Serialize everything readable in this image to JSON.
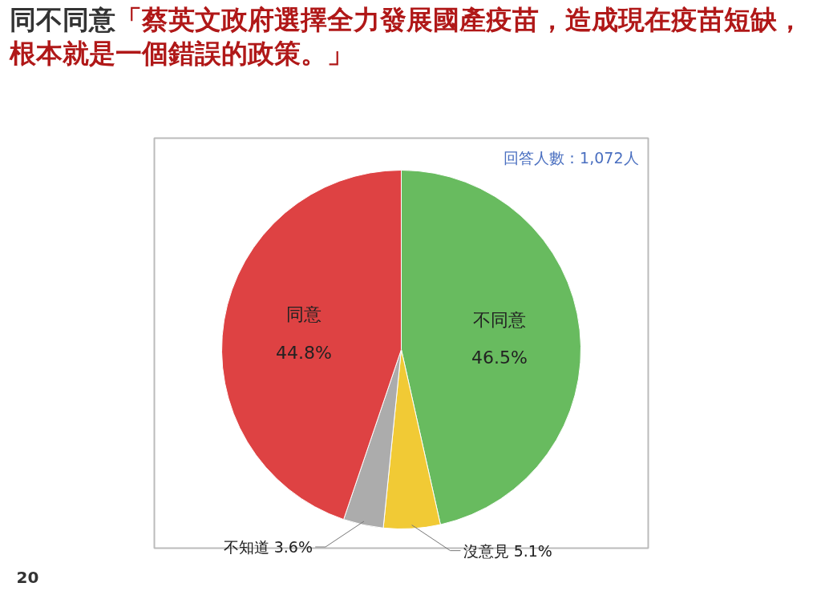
{
  "chart_data": {
    "type": "pie",
    "title": "同不同意",
    "subtitle": "「蔡英文政府選擇全力發展國產疫苗，造成現在疫苗短缺，根本就是一個錯誤的政策。」",
    "categories": [
      "不同意",
      "沒意見",
      "不知道",
      "同意"
    ],
    "values": [
      46.5,
      5.1,
      3.6,
      44.8
    ],
    "value_labels": [
      "46.5%",
      "5.1%",
      "3.6%",
      "44.8%"
    ],
    "colors": [
      "#68bb5f",
      "#f1ca35",
      "#acacac",
      "#de4243"
    ],
    "annotations": [
      "回答人數：1,072人",
      "20"
    ]
  }
}
